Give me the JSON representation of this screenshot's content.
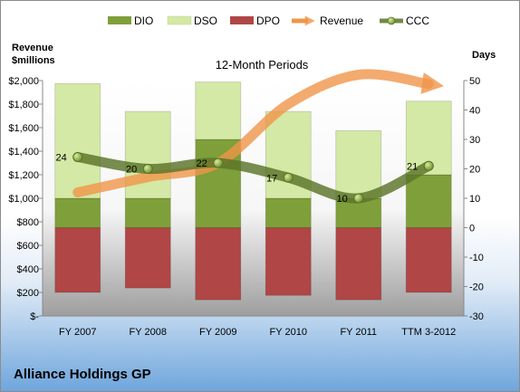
{
  "chart_data": {
    "type": "bar",
    "title": "12-Month Periods",
    "company": "Alliance Holdings GP",
    "y_left_label": [
      "Revenue",
      "$millions"
    ],
    "y_right_label": "Days",
    "categories": [
      "FY 2007",
      "FY 2008",
      "FY 2009",
      "FY 2010",
      "FY 2011",
      "TTM 3-2012"
    ],
    "y_left_ticks": [
      "$-",
      "$200",
      "$400",
      "$600",
      "$800",
      "$1,000",
      "$1,200",
      "$1,400",
      "$1,600",
      "$1,800",
      "$2,000"
    ],
    "ylim_left": [
      0,
      2000
    ],
    "y_right_ticks": [
      "-30",
      "-20",
      "-10",
      "0",
      "10",
      "20",
      "30",
      "40",
      "50"
    ],
    "ylim_right": [
      -30,
      50
    ],
    "series": [
      {
        "name": "DIO",
        "type": "stacked-bar",
        "axis": "days",
        "color": "#7f9f3a",
        "segments": [
          [
            0,
            10
          ],
          [
            0,
            10
          ],
          [
            0,
            30
          ],
          [
            0,
            10
          ],
          [
            0,
            10
          ],
          [
            0,
            18
          ]
        ]
      },
      {
        "name": "DSO",
        "type": "stacked-bar",
        "axis": "days",
        "color": "#d4e9a6",
        "segments": [
          [
            10,
            49
          ],
          [
            10,
            39.5
          ],
          [
            30,
            49.5
          ],
          [
            10,
            39.5
          ],
          [
            10,
            33
          ],
          [
            18,
            43
          ]
        ]
      },
      {
        "name": "DPO",
        "type": "bar",
        "axis": "days",
        "color": "#b04646",
        "segments": [
          [
            -22,
            0
          ],
          [
            -20.5,
            0
          ],
          [
            -24.5,
            0
          ],
          [
            -23,
            0
          ],
          [
            -24.5,
            0
          ],
          [
            -22,
            0
          ]
        ]
      },
      {
        "name": "Revenue",
        "type": "line",
        "axis": "revenue",
        "color": "#f0954a",
        "values": [
          1050,
          1180,
          1300,
          1800,
          2050,
          1970
        ]
      },
      {
        "name": "CCC",
        "type": "line",
        "axis": "days",
        "color": "#5a7428",
        "values": [
          24,
          20,
          22,
          17,
          10,
          21
        ],
        "labels": [
          "24",
          "20",
          "22",
          "17",
          "10",
          "21"
        ]
      }
    ],
    "grid": false,
    "legend_position": "top"
  }
}
